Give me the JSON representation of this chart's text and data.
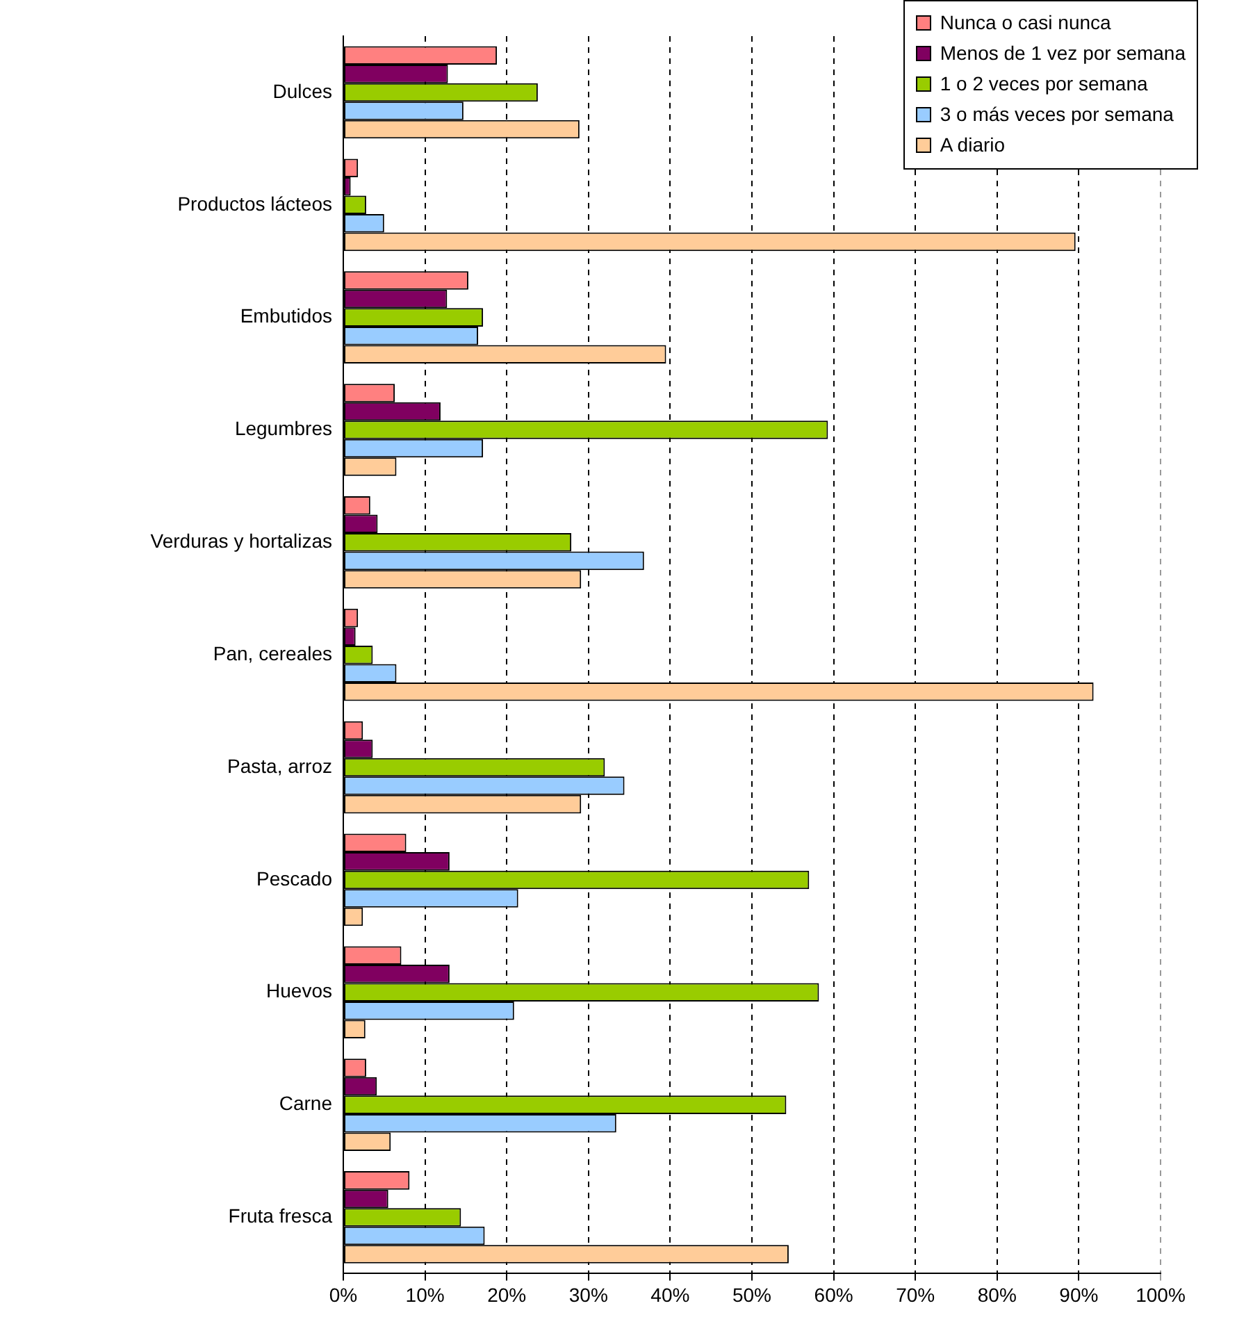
{
  "chart_data": {
    "type": "bar",
    "orientation": "horizontal",
    "categories": [
      "Dulces",
      "Productos lácteos",
      "Embutidos",
      "Legumbres",
      "Verduras y hortalizas",
      "Pan, cereales",
      "Pasta, arroz",
      "Pescado",
      "Huevos",
      "Carne",
      "Fruta fresca"
    ],
    "series": [
      {
        "name": "Nunca o casi nunca",
        "color": "#ff8080",
        "values": [
          18.8,
          1.8,
          15.3,
          6.3,
          3.3,
          1.8,
          2.4,
          7.7,
          7.1,
          2.8,
          8.1
        ]
      },
      {
        "name": "Menos de 1 vez por semana",
        "color": "#800060",
        "values": [
          12.8,
          0.9,
          12.7,
          11.9,
          4.2,
          1.5,
          3.6,
          13,
          13,
          4.1,
          5.5
        ]
      },
      {
        "name": "1 o 2 veces por semana",
        "color": "#99cc00",
        "values": [
          23.8,
          2.8,
          17.1,
          59.3,
          27.9,
          3.6,
          32,
          57,
          58.2,
          54.2,
          14.4
        ]
      },
      {
        "name": "3 o más veces por semana",
        "color": "#99ccff",
        "values": [
          14.7,
          5,
          16.5,
          17.1,
          36.8,
          6.5,
          34.4,
          21.4,
          20.9,
          33.4,
          17.3
        ]
      },
      {
        "name": "A diario",
        "color": "#ffcc99",
        "values": [
          28.9,
          89.6,
          39.5,
          6.5,
          29.1,
          91.8,
          29.1,
          2.4,
          2.7,
          5.8,
          54.5
        ]
      }
    ],
    "xlim": [
      0,
      100
    ],
    "xticks": [
      {
        "value": 0,
        "label": "0%"
      },
      {
        "value": 10,
        "label": "10%"
      },
      {
        "value": 20,
        "label": "20%"
      },
      {
        "value": 30,
        "label": "30%"
      },
      {
        "value": 40,
        "label": "40%"
      },
      {
        "value": 50,
        "label": "50%"
      },
      {
        "value": 60,
        "label": "60%"
      },
      {
        "value": 70,
        "label": "70%"
      },
      {
        "value": 80,
        "label": "80%"
      },
      {
        "value": 90,
        "label": "90%"
      },
      {
        "value": 100,
        "label": "100%"
      }
    ],
    "grid": "x",
    "legend": "top right"
  }
}
